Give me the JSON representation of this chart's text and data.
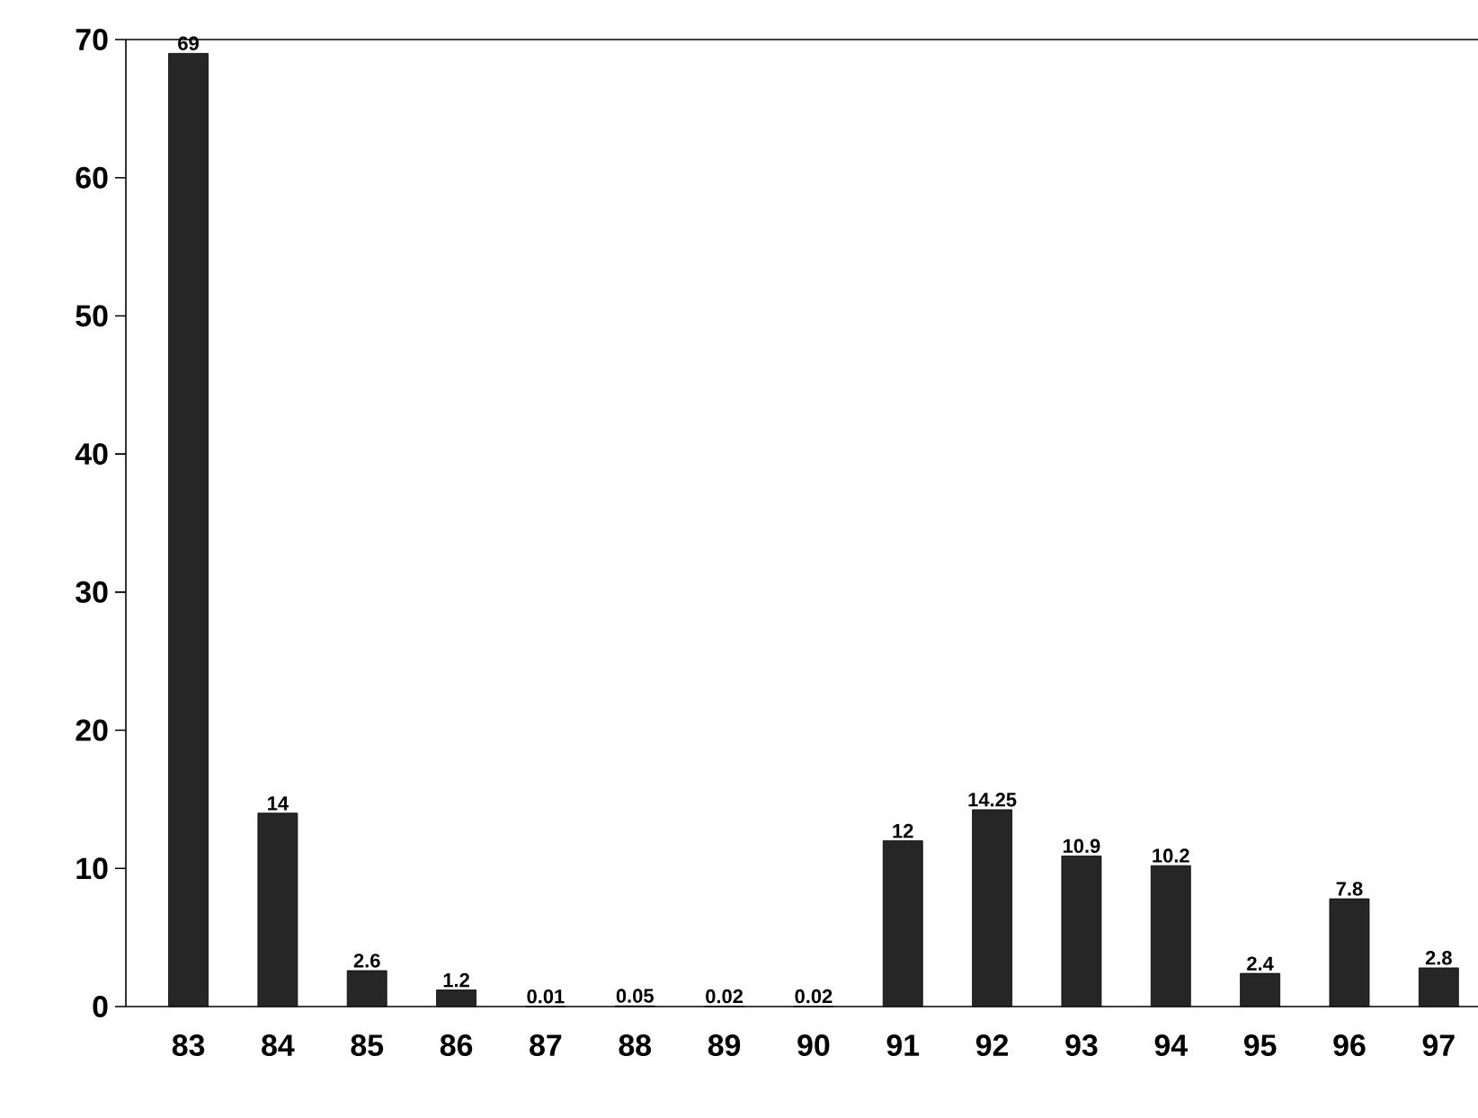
{
  "chart_data": {
    "type": "bar",
    "categories": [
      "83",
      "84",
      "85",
      "86",
      "87",
      "88",
      "89",
      "90",
      "91",
      "92",
      "93",
      "94",
      "95",
      "96",
      "97"
    ],
    "values": [
      69,
      14,
      2.6,
      1.2,
      0.01,
      0.05,
      0.02,
      0.02,
      12,
      14.25,
      10.9,
      10.2,
      2.4,
      7.8,
      2.8
    ],
    "value_labels": [
      "69",
      "14",
      "2.6",
      "1.2",
      "0.01",
      "0.05",
      "0.02",
      "0.02",
      "12",
      "14.25",
      "10.9",
      "10.2",
      "2.4",
      "7.8",
      "2.8"
    ],
    "color": "#262626",
    "ylim": [
      0,
      70
    ],
    "yticks": [
      0,
      10,
      20,
      30,
      40,
      50,
      60,
      70
    ]
  }
}
